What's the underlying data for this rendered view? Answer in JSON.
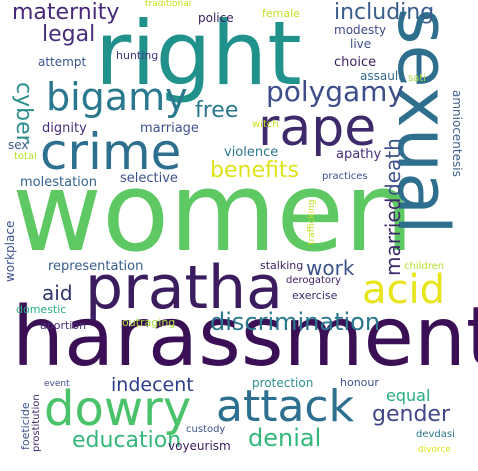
{
  "words": [
    {
      "id": "w-women",
      "text": "women",
      "color": "#5ec962"
    },
    {
      "id": "w-harassment",
      "text": "harassment",
      "color": "#3b0f55"
    },
    {
      "id": "w-right",
      "text": "right",
      "color": "#21918c"
    },
    {
      "id": "w-sexual",
      "text": "sexual",
      "color": "#2e6f8e"
    },
    {
      "id": "w-pratha",
      "text": "pratha",
      "color": "#3b1d5f"
    },
    {
      "id": "w-crime",
      "text": "crime",
      "color": "#2c6f8e"
    },
    {
      "id": "w-rape",
      "text": "rape",
      "color": "#3e2a6b"
    },
    {
      "id": "w-dowry",
      "text": "dowry",
      "color": "#4ac26a"
    },
    {
      "id": "w-bigamy",
      "text": "bigamy",
      "color": "#2a788e"
    },
    {
      "id": "w-attack",
      "text": "attack",
      "color": "#2c6f8e"
    },
    {
      "id": "w-acid",
      "text": "acid",
      "color": "#e7e419"
    },
    {
      "id": "w-polygamy",
      "text": "polygamy",
      "color": "#3d4e8a"
    },
    {
      "id": "w-discrimination",
      "text": "discrimination",
      "color": "#2a788e"
    },
    {
      "id": "w-education",
      "text": "education",
      "color": "#35b779"
    },
    {
      "id": "w-denial",
      "text": "denial",
      "color": "#35b779"
    },
    {
      "id": "w-maternity",
      "text": "maternity",
      "color": "#482878"
    },
    {
      "id": "w-including",
      "text": "including",
      "color": "#3a5e8c"
    },
    {
      "id": "w-legal",
      "text": "legal",
      "color": "#472d7b"
    },
    {
      "id": "w-free",
      "text": "free",
      "color": "#2a788e"
    },
    {
      "id": "w-cyber",
      "text": "cyber",
      "color": "#2c8f8c"
    },
    {
      "id": "w-death",
      "text": "death",
      "color": "#3b528b"
    },
    {
      "id": "w-married",
      "text": "married",
      "color": "#3e2a6b"
    },
    {
      "id": "w-benefits",
      "text": "benefits",
      "color": "#dfe318"
    },
    {
      "id": "w-gender",
      "text": "gender",
      "color": "#404688"
    },
    {
      "id": "w-indecent",
      "text": "indecent",
      "color": "#2c3e8a"
    },
    {
      "id": "w-equal",
      "text": "equal",
      "color": "#27ad81"
    },
    {
      "id": "w-work",
      "text": "work",
      "color": "#3b528b"
    },
    {
      "id": "w-aid",
      "text": "aid",
      "color": "#31356e"
    },
    {
      "id": "w-representation",
      "text": "representation",
      "color": "#355f8d"
    },
    {
      "id": "w-violence",
      "text": "violence",
      "color": "#2a788e"
    },
    {
      "id": "w-apathy",
      "text": "apathy",
      "color": "#472d7b"
    },
    {
      "id": "w-selective",
      "text": "selective",
      "color": "#3b528b"
    },
    {
      "id": "w-molestation",
      "text": "molestation",
      "color": "#33638d"
    },
    {
      "id": "w-marriage",
      "text": "marriage",
      "color": "#3b528b"
    },
    {
      "id": "w-dignity",
      "text": "dignity",
      "color": "#472d7b"
    },
    {
      "id": "w-sex",
      "text": "sex",
      "color": "#3a5e8c"
    },
    {
      "id": "w-total",
      "text": "total",
      "color": "#b5de2b"
    },
    {
      "id": "w-police",
      "text": "police",
      "color": "#3b1d5f"
    },
    {
      "id": "w-female",
      "text": "female",
      "color": "#c2df23"
    },
    {
      "id": "w-modesty",
      "text": "modesty",
      "color": "#3e4a89"
    },
    {
      "id": "w-live",
      "text": "live",
      "color": "#3a548c"
    },
    {
      "id": "w-choice",
      "text": "choice",
      "color": "#3b1d5f"
    },
    {
      "id": "w-assault",
      "text": "assault",
      "color": "#31688e"
    },
    {
      "id": "w-sati",
      "text": "sati",
      "color": "#a0da39"
    },
    {
      "id": "w-attempt",
      "text": "attempt",
      "color": "#3a548c"
    },
    {
      "id": "w-hunting",
      "text": "hunting",
      "color": "#453781"
    },
    {
      "id": "w-witch",
      "text": "witch",
      "color": "#c8e020"
    },
    {
      "id": "w-amniocentesis",
      "text": "amniocentesis",
      "color": "#3a5e8c"
    },
    {
      "id": "w-practices",
      "text": "practices",
      "color": "#3b528b"
    },
    {
      "id": "w-trafficking",
      "text": "trafficking",
      "color": "#c8e020"
    },
    {
      "id": "w-workplace",
      "text": "workplace",
      "color": "#3b528b"
    },
    {
      "id": "w-stalking",
      "text": "stalking",
      "color": "#3b1d5f"
    },
    {
      "id": "w-derogatory",
      "text": "derogatory",
      "color": "#3b1d5f"
    },
    {
      "id": "w-exercise",
      "text": "exercise",
      "color": "#3e2a6b"
    },
    {
      "id": "w-children",
      "text": "children",
      "color": "#b5de2b"
    },
    {
      "id": "w-domestic",
      "text": "domestic",
      "color": "#27ad81"
    },
    {
      "id": "w-abortion",
      "text": "abortion",
      "color": "#472d7b"
    },
    {
      "id": "w-outraging",
      "text": "outraging",
      "color": "#a5db36"
    },
    {
      "id": "w-protection",
      "text": "protection",
      "color": "#2c8f8c"
    },
    {
      "id": "w-honour",
      "text": "honour",
      "color": "#3b528b"
    },
    {
      "id": "w-event",
      "text": "event",
      "color": "#3e4a89"
    },
    {
      "id": "w-foeticide",
      "text": "foeticide",
      "color": "#3a548c"
    },
    {
      "id": "w-prostitution",
      "text": "prostitution",
      "color": "#3e2a6b"
    },
    {
      "id": "w-voyeurism",
      "text": "voyeurism",
      "color": "#3b1d5f"
    },
    {
      "id": "w-custody",
      "text": "custody",
      "color": "#3a548c"
    },
    {
      "id": "w-devdasi",
      "text": "devdasi",
      "color": "#2a788e"
    },
    {
      "id": "w-divorce",
      "text": "divorce",
      "color": "#dfe318"
    },
    {
      "id": "w-traditional",
      "text": "traditional",
      "color": "#c8e020"
    }
  ]
}
